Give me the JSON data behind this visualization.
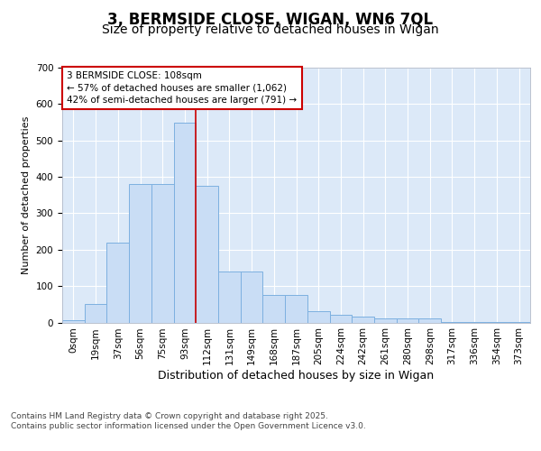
{
  "title_line1": "3, BERMSIDE CLOSE, WIGAN, WN6 7QL",
  "title_line2": "Size of property relative to detached houses in Wigan",
  "xlabel": "Distribution of detached houses by size in Wigan",
  "ylabel": "Number of detached properties",
  "bin_labels": [
    "0sqm",
    "19sqm",
    "37sqm",
    "56sqm",
    "75sqm",
    "93sqm",
    "112sqm",
    "131sqm",
    "149sqm",
    "168sqm",
    "187sqm",
    "205sqm",
    "224sqm",
    "242sqm",
    "261sqm",
    "280sqm",
    "298sqm",
    "317sqm",
    "336sqm",
    "354sqm",
    "373sqm"
  ],
  "bar_heights": [
    5,
    50,
    220,
    380,
    380,
    550,
    375,
    140,
    140,
    75,
    75,
    30,
    20,
    15,
    10,
    10,
    10,
    2,
    2,
    2,
    2
  ],
  "bar_color": "#c9ddf5",
  "bar_edge_color": "#7db0e0",
  "vline_x": 6.0,
  "annotation_text": "3 BERMSIDE CLOSE: 108sqm\n← 57% of detached houses are smaller (1,062)\n42% of semi-detached houses are larger (791) →",
  "annotation_box_facecolor": "#ffffff",
  "annotation_box_edgecolor": "#cc0000",
  "ylim": [
    0,
    700
  ],
  "yticks": [
    0,
    100,
    200,
    300,
    400,
    500,
    600,
    700
  ],
  "figure_facecolor": "#ffffff",
  "plot_facecolor": "#dce9f8",
  "vline_color": "#cc0000",
  "grid_color": "#ffffff",
  "title_fontsize": 12,
  "subtitle_fontsize": 10,
  "ylabel_fontsize": 8,
  "xlabel_fontsize": 9,
  "tick_fontsize": 7.5,
  "annotation_fontsize": 7.5,
  "footer_fontsize": 6.5,
  "footer_line1": "Contains HM Land Registry data © Crown copyright and database right 2025.",
  "footer_line2": "Contains public sector information licensed under the Open Government Licence v3.0."
}
